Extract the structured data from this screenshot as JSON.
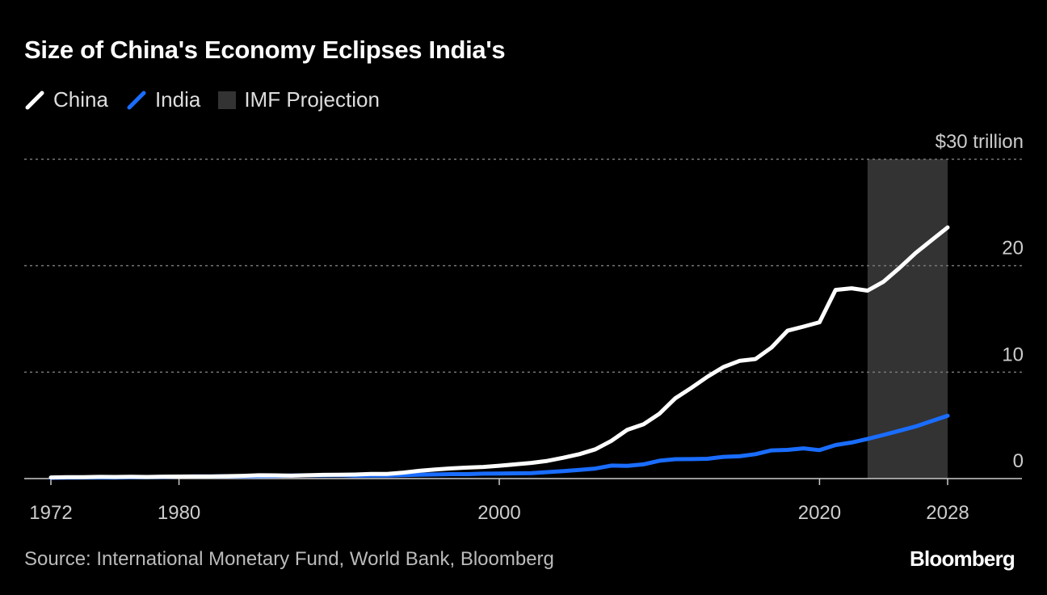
{
  "chart_data": {
    "type": "line",
    "title": "Size of China's Economy Eclipses India's",
    "source": "Source: International Monetary Fund, World Bank, Bloomberg",
    "brand": "Bloomberg",
    "legend_placement": "top-left",
    "grid": true,
    "xlim": [
      1972,
      2028
    ],
    "ylim": [
      0,
      30
    ],
    "x_ticks": [
      "1972",
      "1980",
      "2000",
      "2020",
      "2028"
    ],
    "y_ticks": [
      {
        "value": 0,
        "label": "0"
      },
      {
        "value": 10,
        "label": "10"
      },
      {
        "value": 20,
        "label": "20"
      },
      {
        "value": 30,
        "label": "$30 trillion"
      }
    ],
    "shaded_region": {
      "name": "IMF Projection",
      "x": [
        2023,
        2028
      ],
      "color": "#333333"
    },
    "x": [
      1972,
      1973,
      1974,
      1975,
      1976,
      1977,
      1978,
      1979,
      1980,
      1981,
      1982,
      1983,
      1984,
      1985,
      1986,
      1987,
      1988,
      1989,
      1990,
      1991,
      1992,
      1993,
      1994,
      1995,
      1996,
      1997,
      1998,
      1999,
      2000,
      2001,
      2002,
      2003,
      2004,
      2005,
      2006,
      2007,
      2008,
      2009,
      2010,
      2011,
      2012,
      2013,
      2014,
      2015,
      2016,
      2017,
      2018,
      2019,
      2020,
      2021,
      2022,
      2023,
      2024,
      2025,
      2026,
      2027,
      2028
    ],
    "series": [
      {
        "name": "China",
        "color": "#ffffff",
        "values": [
          0.11,
          0.14,
          0.14,
          0.16,
          0.15,
          0.17,
          0.15,
          0.18,
          0.19,
          0.2,
          0.2,
          0.23,
          0.26,
          0.31,
          0.3,
          0.27,
          0.31,
          0.35,
          0.36,
          0.38,
          0.43,
          0.44,
          0.56,
          0.73,
          0.86,
          0.96,
          1.03,
          1.09,
          1.21,
          1.34,
          1.47,
          1.66,
          1.96,
          2.29,
          2.75,
          3.55,
          4.59,
          5.1,
          6.09,
          7.55,
          8.53,
          9.57,
          10.48,
          11.06,
          11.23,
          12.31,
          13.89,
          14.28,
          14.69,
          17.73,
          17.88,
          17.66,
          18.5,
          19.8,
          21.2,
          22.4,
          23.6
        ]
      },
      {
        "name": "India",
        "color": "#1a6dff",
        "values": [
          0.07,
          0.085,
          0.1,
          0.1,
          0.1,
          0.12,
          0.14,
          0.15,
          0.19,
          0.2,
          0.2,
          0.22,
          0.21,
          0.23,
          0.25,
          0.28,
          0.3,
          0.3,
          0.32,
          0.27,
          0.29,
          0.28,
          0.33,
          0.36,
          0.39,
          0.42,
          0.42,
          0.46,
          0.47,
          0.49,
          0.51,
          0.61,
          0.71,
          0.82,
          0.94,
          1.22,
          1.2,
          1.34,
          1.68,
          1.82,
          1.83,
          1.86,
          2.04,
          2.1,
          2.29,
          2.65,
          2.7,
          2.84,
          2.67,
          3.15,
          3.39,
          3.73,
          4.1,
          4.5,
          4.9,
          5.4,
          5.9
        ]
      }
    ]
  }
}
